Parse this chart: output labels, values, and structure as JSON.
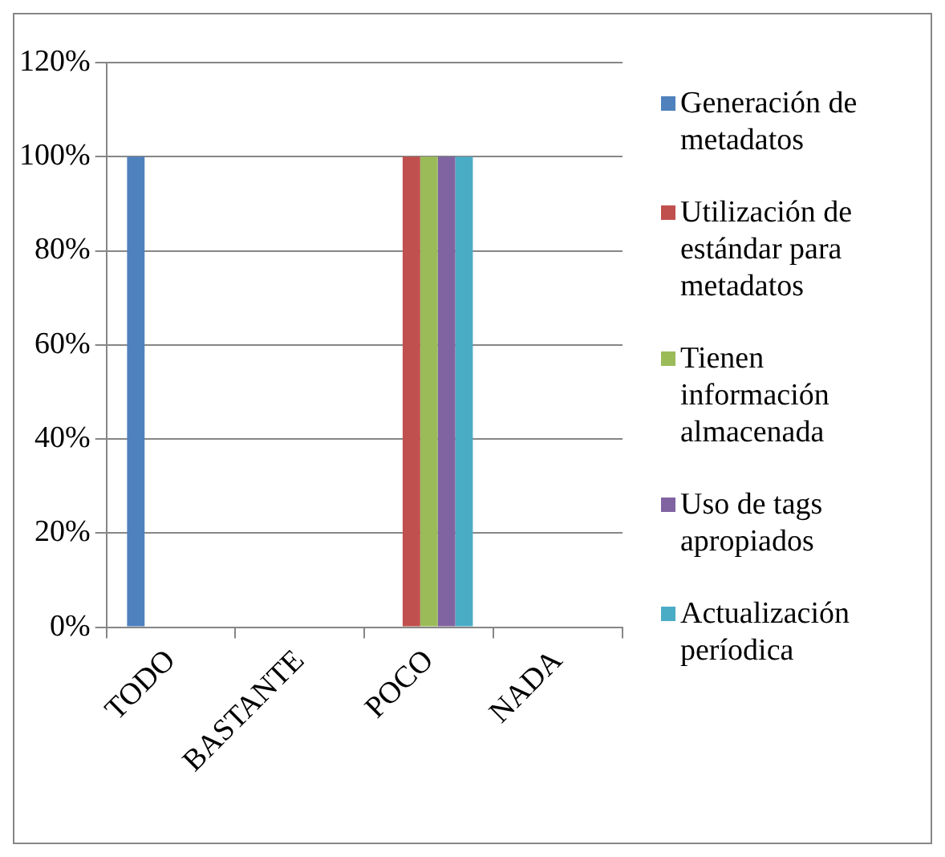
{
  "chart_data": {
    "type": "bar",
    "categories": [
      "TODO",
      "BASTANTE",
      "POCO",
      "NADA"
    ],
    "series": [
      {
        "name": "Generación de metadatos",
        "color": "#4f81bd",
        "values": [
          100,
          0,
          0,
          0
        ]
      },
      {
        "name": "Utilización de estándar para metadatos",
        "color": "#c0504d",
        "values": [
          0,
          0,
          100,
          0
        ]
      },
      {
        "name": "Tienen información almacenada",
        "color": "#9bbb59",
        "values": [
          0,
          0,
          100,
          0
        ]
      },
      {
        "name": "Uso de tags apropiados",
        "color": "#8064a2",
        "values": [
          0,
          0,
          100,
          0
        ]
      },
      {
        "name": "Actualización períodica",
        "color": "#4bacc6",
        "values": [
          0,
          0,
          100,
          0
        ]
      }
    ],
    "ylim": [
      0,
      120
    ],
    "yticks": [
      {
        "value": 0,
        "label": "0%"
      },
      {
        "value": 20,
        "label": "20%"
      },
      {
        "value": 40,
        "label": "40%"
      },
      {
        "value": 60,
        "label": "60%"
      },
      {
        "value": 80,
        "label": "80%"
      },
      {
        "value": 100,
        "label": "100%"
      },
      {
        "value": 120,
        "label": "120%"
      }
    ],
    "grid": "y",
    "legend": "right"
  }
}
